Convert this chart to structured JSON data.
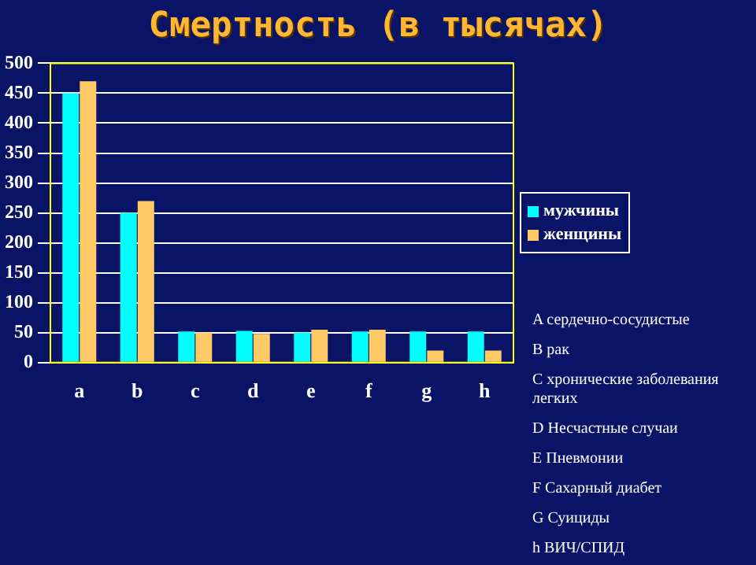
{
  "chart_data": {
    "type": "bar",
    "title": "Смертность (в тысячах)",
    "categories": [
      "a",
      "b",
      "c",
      "d",
      "e",
      "f",
      "g",
      "h"
    ],
    "series": [
      {
        "name": "мужчины",
        "color": "#00ffff",
        "values": [
          450,
          250,
          52,
          53,
          50,
          52,
          52,
          52
        ]
      },
      {
        "name": "женщины",
        "color": "#ffc966",
        "values": [
          470,
          270,
          50,
          48,
          55,
          55,
          20,
          20
        ]
      }
    ],
    "ylim": [
      0,
      500
    ],
    "yticks": [
      0,
      50,
      100,
      150,
      200,
      250,
      300,
      350,
      400,
      450,
      500
    ],
    "grid": "y",
    "legend": "right",
    "annotations": [
      "A сердечно-сосудистые",
      "B рак",
      "C хронические заболевания легких",
      "D Несчастные случаи",
      "E Пневмонии",
      "F Сахарный диабет",
      "G Суициды",
      "h ВИЧ/СПИД"
    ]
  }
}
